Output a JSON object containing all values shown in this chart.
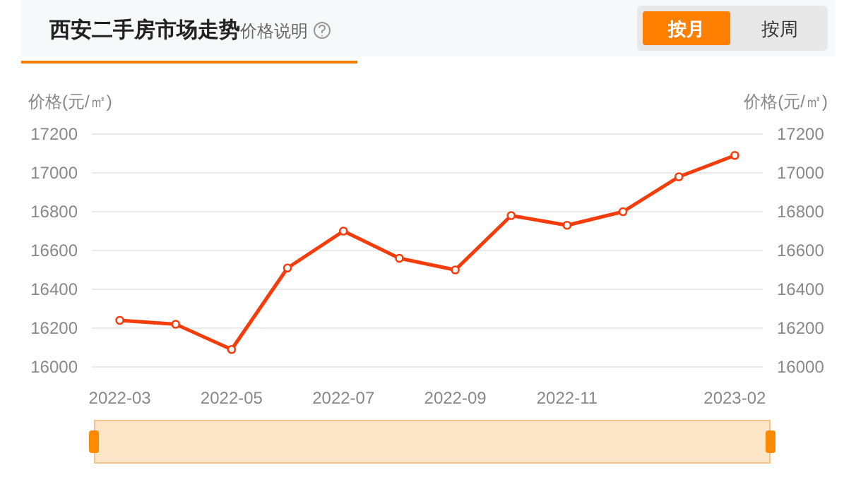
{
  "chart_data": {
    "type": "line",
    "title": "西安二手房市场走势",
    "subtitle": "价格说明",
    "annotations": [
      "按月",
      "按周"
    ],
    "ylabel": "价格(元/㎡)",
    "y2label": "价格(元/㎡)",
    "categories": [
      "2022-03",
      null,
      "2022-05",
      null,
      "2022-07",
      null,
      "2022-09",
      null,
      "2022-11",
      null,
      null,
      "2023-02"
    ],
    "series": [
      {
        "color": "#f53c0a",
        "values": [
          16240,
          16220,
          16090,
          16510,
          16700,
          16560,
          16500,
          16780,
          16730,
          16800,
          16980,
          17090
        ]
      }
    ],
    "ylim": [
      16000,
      17200
    ],
    "yticks": [
      16000,
      16200,
      16400,
      16600,
      16800,
      17000,
      17200
    ],
    "y2lim": [
      16000,
      17200
    ],
    "y2ticks": [
      16000,
      16200,
      16400,
      16600,
      16800,
      17000,
      17200
    ],
    "grid": "y",
    "marker": "circle",
    "line_style": "solid"
  }
}
